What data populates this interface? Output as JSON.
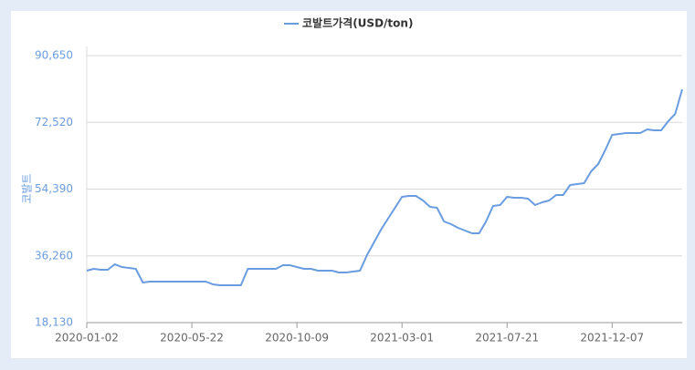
{
  "chart_data": {
    "type": "line",
    "y_label": "코발트",
    "categories": [
      "2020-01-02",
      null,
      null,
      null,
      null,
      null,
      null,
      null,
      null,
      null,
      null,
      null,
      null,
      null,
      null,
      "2020-05-22",
      null,
      null,
      null,
      null,
      null,
      null,
      null,
      null,
      null,
      null,
      null,
      null,
      null,
      null,
      "2020-10-09",
      null,
      null,
      null,
      null,
      null,
      null,
      null,
      null,
      null,
      null,
      null,
      null,
      null,
      null,
      "2021-03-01",
      null,
      null,
      null,
      null,
      null,
      null,
      null,
      null,
      null,
      null,
      null,
      null,
      null,
      null,
      "2021-07-21",
      null,
      null,
      null,
      null,
      null,
      null,
      null,
      null,
      null,
      null,
      null,
      null,
      null,
      null,
      "2021-12-07",
      null,
      null,
      null,
      null,
      null,
      null,
      null,
      null,
      null,
      null
    ],
    "series": [
      {
        "name": "코발트가격(USD/ton)",
        "color": "#6a9ce0",
        "values": [
          32240,
          32730,
          32490,
          32490,
          33970,
          33230,
          32980,
          32730,
          29020,
          29270,
          29270,
          29270,
          29270,
          29270,
          29270,
          29270,
          29270,
          29270,
          28530,
          28280,
          28280,
          28280,
          28280,
          32730,
          32730,
          32730,
          32730,
          32730,
          33720,
          33720,
          33230,
          32730,
          32730,
          32240,
          32240,
          32240,
          31740,
          31740,
          31990,
          32240,
          36450,
          39910,
          43380,
          46350,
          49320,
          52290,
          52530,
          52530,
          51300,
          49560,
          49320,
          45600,
          44860,
          43870,
          43130,
          42390,
          42390,
          45600,
          49810,
          50060,
          52290,
          52040,
          52040,
          51790,
          50060,
          50800,
          51300,
          52780,
          52780,
          55500,
          55750,
          56000,
          59220,
          61200,
          64910,
          69120,
          69360,
          69610,
          69610,
          69610,
          70600,
          70350,
          70350,
          72830,
          74810,
          81490
        ]
      }
    ],
    "ylim": [
      18130,
      90650
    ],
    "yticks": [
      {
        "value": 18130,
        "label": "18,130"
      },
      {
        "value": 36260,
        "label": "36,260"
      },
      {
        "value": 54390,
        "label": "54,390"
      },
      {
        "value": 72520,
        "label": "72,520"
      },
      {
        "value": 90650,
        "label": "90,650"
      }
    ],
    "grid": true
  }
}
